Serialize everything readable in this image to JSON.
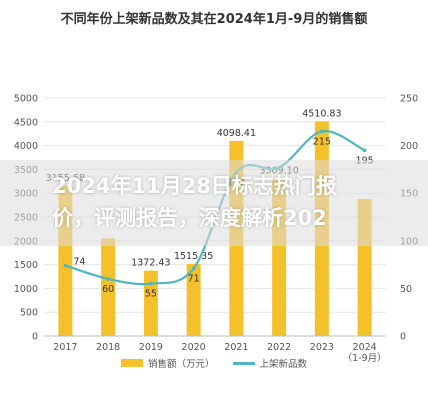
{
  "chart_data": {
    "type": "bar",
    "title": "不同年份上架新品数及其在2024年1月-9月的销售额",
    "categories": [
      "2017",
      "2018",
      "2019",
      "2020",
      "2021",
      "2022",
      "2023",
      "2024（1-9月）"
    ],
    "tick_labels": [
      [
        "2017"
      ],
      [
        "2018"
      ],
      [
        "2019"
      ],
      [
        "2020"
      ],
      [
        "2021"
      ],
      [
        "2022"
      ],
      [
        "2023"
      ],
      [
        "2024",
        "（1-9月）"
      ]
    ],
    "series": [
      {
        "name": "销售额（万元）",
        "axis": "left",
        "type": "bar",
        "values": [
          3155.68,
          2050,
          1372.43,
          1515.35,
          4098.41,
          3309.1,
          4510.83,
          2880
        ],
        "labels": [
          "3155.68",
          "",
          "1372.43",
          "1515.35",
          "4098.41",
          "3309.10",
          "4510.83",
          ""
        ]
      },
      {
        "name": "上架新品数",
        "axis": "right",
        "type": "line",
        "values": [
          74,
          60,
          55,
          71,
          172,
          177,
          215,
          195
        ],
        "labels": [
          "74",
          "60",
          "55",
          "71",
          "172",
          "",
          "215",
          "195"
        ]
      }
    ],
    "ylim": [
      0,
      5000
    ],
    "y2lim": [
      0,
      250
    ],
    "yticks": [
      0,
      500,
      1000,
      1500,
      2000,
      2500,
      3000,
      3500,
      4000,
      4500,
      5000
    ],
    "y2ticks": [
      0,
      50,
      100,
      150,
      200,
      250
    ],
    "grid": true,
    "legend": "bottom",
    "colors": {
      "bar": "#f5c12b",
      "line": "#4fb7bd"
    }
  },
  "overlay": {
    "line1": "2024年11月28日标志热门报",
    "line2": "价，评测报告，深度解析202"
  }
}
